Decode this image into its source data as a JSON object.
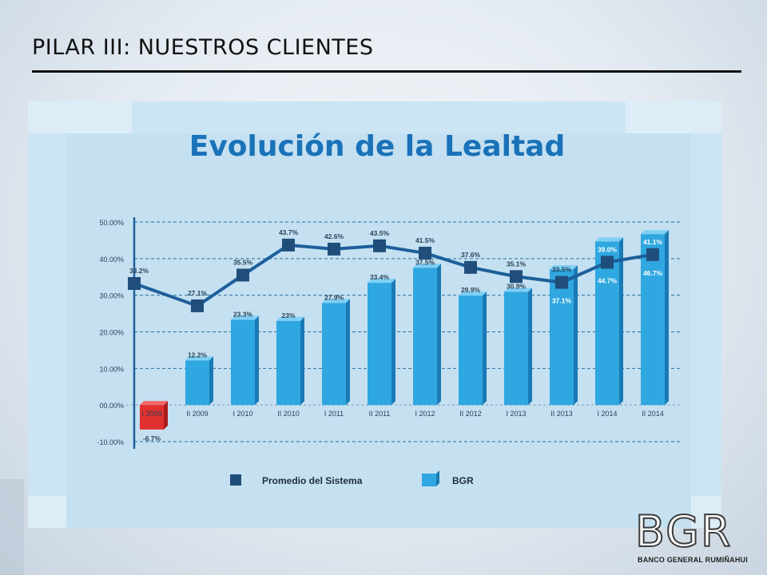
{
  "slide": {
    "title": "PILAR III: NUESTROS CLIENTES"
  },
  "logo": {
    "mark": "BGR",
    "subtitle": "BANCO GENERAL RUMIÑAHUI"
  },
  "colors": {
    "line": "#1d5f9a",
    "marker": "#1f4e7a",
    "bar": "#2fa7e0",
    "bar_negative": "#e1302d",
    "title": "#1a72b8"
  },
  "chart_data": {
    "type": "bar",
    "title": "Evolución de la Lealtad",
    "categories": [
      "I 2009",
      "II 2009",
      "I 2010",
      "II 2010",
      "I 2011",
      "II 2011",
      "I 2012",
      "II 2012",
      "I 2013",
      "II 2013",
      "I 2014",
      "II 2014"
    ],
    "ylim": [
      -10,
      50
    ],
    "y_ticks": [
      "50.00%",
      "40.00%",
      "30.00%",
      "20.00%",
      "10.00%",
      "00.00%",
      "-10.00%"
    ],
    "y_tick_values": [
      50,
      40,
      30,
      20,
      10,
      0,
      -10
    ],
    "grid": "dashed horizontal",
    "legend_position": "bottom",
    "series": [
      {
        "name": "Promedio del Sistema",
        "kind": "line",
        "values": [
          33.2,
          27.1,
          35.5,
          43.7,
          42.6,
          43.5,
          41.5,
          37.6,
          35.1,
          33.5,
          39.0,
          41.1
        ],
        "labels": [
          "33.2%",
          "27.1%",
          "35.5%",
          "43.7%",
          "42.6%",
          "43.5%",
          "41.5%",
          "37.6%",
          "35.1%",
          "33.5%",
          "39.0%",
          "41.1%"
        ]
      },
      {
        "name": "BGR",
        "kind": "bar",
        "values": [
          -6.7,
          12.2,
          23.3,
          23.0,
          27.9,
          33.4,
          37.5,
          29.9,
          30.9,
          37.1,
          44.7,
          46.7
        ],
        "labels": [
          "-6.7%",
          "12.2%",
          "23.3%",
          "23%",
          "27.9%",
          "33.4%",
          "37.5%",
          "29.9%",
          "30.9%",
          "37.1%",
          "44.7%",
          "46.7%"
        ]
      }
    ]
  }
}
